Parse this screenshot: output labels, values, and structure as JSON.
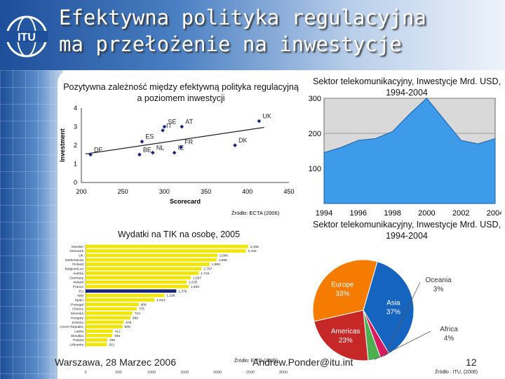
{
  "logo_text": "ITU",
  "slide": {
    "title_line1": "Efektywna polityka regulacyjna",
    "title_line2": "ma przełożenie na inwestycje",
    "footer_left": "Warszawa, 28 Marzec 2006",
    "footer_mid": "Andrew.Ponder@itu.int",
    "page_number": "12"
  },
  "scatter_title": "Pozytywna zależność między efektywną polityka regulacyjną a poziomem inwestycji",
  "area_title": "Sektor telekomunikacyjny, Inwestycje Mrd. USD, 1994-2004",
  "pie_title": "Sektor telekomunikacyjny, Inwestycje Mrd. USD, 1994-2004",
  "bar_title": "Wydatki na TIK na osobę, 2005",
  "colors": {
    "accent": "#1d4f9a",
    "scatter_point": "#1a237e",
    "area_fill": "#3d9be9",
    "bar": "#f2e600",
    "bar_eu": "#1a237e"
  },
  "chart_data": [
    {
      "type": "scatter",
      "title": "Pozytywna zależność między efektywną polityka regulacyjną a poziomem inwestycji",
      "xlabel": "Scorecard",
      "ylabel": "Investment",
      "xlim": [
        200,
        450
      ],
      "ylim": [
        0,
        4
      ],
      "xticks": [
        200,
        250,
        300,
        350,
        400,
        450
      ],
      "yticks": [
        0,
        1,
        2,
        3,
        4
      ],
      "grid": false,
      "trendline": true,
      "source": "Źródło: ECTA (2006)",
      "points": [
        {
          "label": "DE",
          "x": 211,
          "y": 1.5
        },
        {
          "label": "BE",
          "x": 270,
          "y": 1.5
        },
        {
          "label": "NL",
          "x": 286,
          "y": 1.6
        },
        {
          "label": "ES",
          "x": 273,
          "y": 2.2
        },
        {
          "label": "IT",
          "x": 298,
          "y": 2.8
        },
        {
          "label": "SE",
          "x": 300,
          "y": 3.0
        },
        {
          "label": "IE",
          "x": 312,
          "y": 1.6
        },
        {
          "label": "AT",
          "x": 321,
          "y": 3.0
        },
        {
          "label": "FR",
          "x": 320,
          "y": 1.9
        },
        {
          "label": "DK",
          "x": 385,
          "y": 2.0
        },
        {
          "label": "UK",
          "x": 414,
          "y": 3.3
        }
      ]
    },
    {
      "type": "area",
      "title": "Sektor telekomunikacyjny, Inwestycje Mrd. USD, 1994-2004",
      "x": [
        1994,
        1995,
        1996,
        1997,
        1998,
        1999,
        2000,
        2001,
        2002,
        2003,
        2004
      ],
      "xticks": [
        1994,
        1996,
        1998,
        2000,
        2002,
        2004
      ],
      "values": [
        145,
        160,
        180,
        185,
        205,
        255,
        300,
        240,
        180,
        170,
        185
      ],
      "ylim": [
        0,
        300
      ],
      "yticks": [
        100,
        200,
        300
      ],
      "grid": true
    },
    {
      "type": "pie",
      "title": "Sektor telekomunikacyjny, Inwestycje Mrd. USD, 1994-2004",
      "slices": [
        {
          "name": "Asia",
          "value": 37,
          "label": "37%",
          "color": "#1565c0"
        },
        {
          "name": "Oceania",
          "value": 3,
          "label": "3%",
          "color": "#d81b60"
        },
        {
          "name": "Africa",
          "value": 4,
          "label": "4%",
          "color": "#4caf50"
        },
        {
          "name": "Americas",
          "value": 23,
          "label": "23%",
          "color": "#c62828"
        },
        {
          "name": "Europe",
          "value": 33,
          "label": "33%",
          "color": "#f57c00"
        }
      ],
      "source": "Źródło : ITU, (2006)"
    },
    {
      "type": "bar",
      "orientation": "horizontal",
      "title": "Wydatki na TIK na osobę, 2005",
      "categories": [
        "Sweden",
        "Denmark",
        "UK",
        "Netherlands",
        "Finland",
        "Belgium/Lux",
        "Austria",
        "Germany",
        "Ireland",
        "France",
        "EU",
        "Italy",
        "Spain",
        "Portugal",
        "Greece",
        "Slovenia",
        "Hungary",
        "Estonia",
        "Czech Republic",
        "Latvia",
        "Slovakia",
        "Poland",
        "Lithuania"
      ],
      "values": [
        2466,
        2432,
        2000,
        1986,
        1880,
        1757,
        1716,
        1597,
        1535,
        1563,
        1376,
        1196,
        1044,
        806,
        775,
        710,
        680,
        578,
        560,
        412,
        405,
        330,
        321
      ],
      "data_labels": [
        "2,466",
        "2,432",
        "2,000",
        "1,986",
        "1,880",
        "1,757",
        "1,716",
        "1,597",
        "1,535",
        "1,563",
        "1,376",
        "1,196",
        "1,044",
        "806",
        "775",
        "710",
        "680",
        "578",
        "560",
        "412",
        "405",
        "330",
        "321"
      ],
      "xlim": [
        0,
        3000
      ],
      "source": "Źródło: EITO (2005)"
    }
  ]
}
